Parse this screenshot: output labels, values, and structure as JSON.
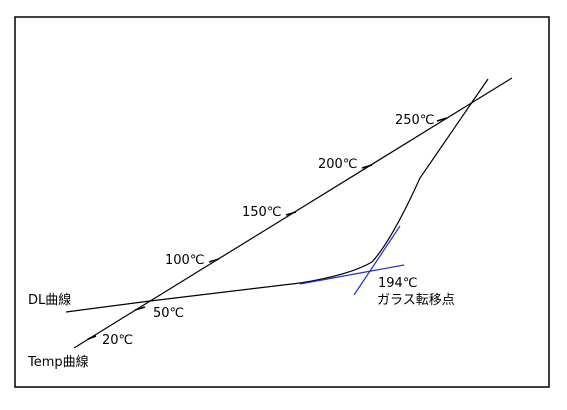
{
  "colors": {
    "line": "#000000",
    "tangent": "#1f2fd6",
    "frame": "#000000",
    "background": "#ffffff"
  },
  "labels": {
    "temp_20": "20℃",
    "temp_50": "50℃",
    "temp_100": "100℃",
    "temp_150": "150℃",
    "temp_200": "200℃",
    "temp_250": "250℃",
    "dl_curve": "DL曲線",
    "temp_curve": "Temp曲線",
    "tg_value": "194℃",
    "tg_name": "ガラス転移点"
  }
}
